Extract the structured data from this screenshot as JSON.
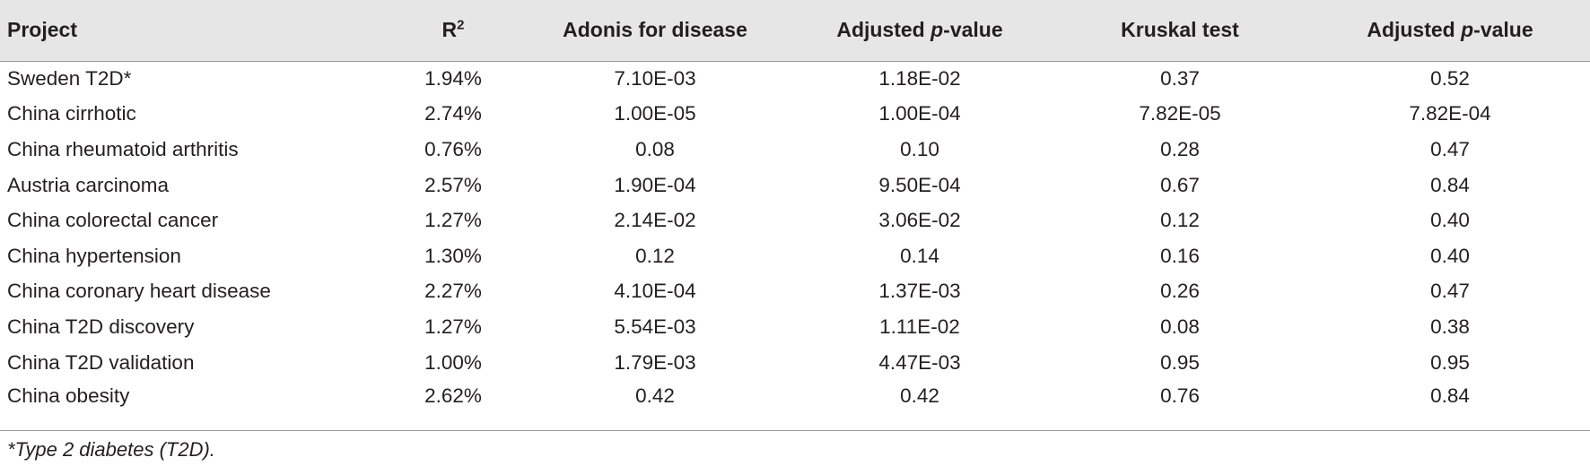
{
  "table": {
    "headers": {
      "project": "Project",
      "r2_base": "R",
      "r2_sup": "2",
      "adonis": "Adonis for disease",
      "adj1_prefix": "Adjusted ",
      "adj1_italic": "p",
      "adj1_suffix": "-value",
      "kruskal": "Kruskal test",
      "adj2_prefix": "Adjusted ",
      "adj2_italic": "p",
      "adj2_suffix": "-value"
    },
    "rows": [
      {
        "project": "Sweden T2D*",
        "r2": "1.94%",
        "adonis": "7.10E-03",
        "adj_p1": "1.18E-02",
        "kruskal": "0.37",
        "adj_p2": "0.52"
      },
      {
        "project": "China cirrhotic",
        "r2": "2.74%",
        "adonis": "1.00E-05",
        "adj_p1": "1.00E-04",
        "kruskal": "7.82E-05",
        "adj_p2": "7.82E-04"
      },
      {
        "project": "China rheumatoid arthritis",
        "r2": "0.76%",
        "adonis": "0.08",
        "adj_p1": "0.10",
        "kruskal": "0.28",
        "adj_p2": "0.47"
      },
      {
        "project": "Austria carcinoma",
        "r2": "2.57%",
        "adonis": "1.90E-04",
        "adj_p1": "9.50E-04",
        "kruskal": "0.67",
        "adj_p2": "0.84"
      },
      {
        "project": "China colorectal cancer",
        "r2": "1.27%",
        "adonis": "2.14E-02",
        "adj_p1": "3.06E-02",
        "kruskal": "0.12",
        "adj_p2": "0.40"
      },
      {
        "project": "China hypertension",
        "r2": "1.30%",
        "adonis": "0.12",
        "adj_p1": "0.14",
        "kruskal": "0.16",
        "adj_p2": "0.40"
      },
      {
        "project": "China coronary heart disease",
        "r2": "2.27%",
        "adonis": "4.10E-04",
        "adj_p1": "1.37E-03",
        "kruskal": "0.26",
        "adj_p2": "0.47"
      },
      {
        "project": "China T2D discovery",
        "r2": "1.27%",
        "adonis": "5.54E-03",
        "adj_p1": "1.11E-02",
        "kruskal": "0.08",
        "adj_p2": "0.38"
      },
      {
        "project": "China T2D validation",
        "r2": "1.00%",
        "adonis": "1.79E-03",
        "adj_p1": "4.47E-03",
        "kruskal": "0.95",
        "adj_p2": "0.95"
      },
      {
        "project": "China obesity",
        "r2": "2.62%",
        "adonis": "0.42",
        "adj_p1": "0.42",
        "kruskal": "0.76",
        "adj_p2": "0.84"
      }
    ]
  },
  "footnote": "*Type 2 diabetes (T2D).",
  "colors": {
    "header_background": "#e6e6e6",
    "rule": "#9a9a9a",
    "text": "#231f20"
  }
}
